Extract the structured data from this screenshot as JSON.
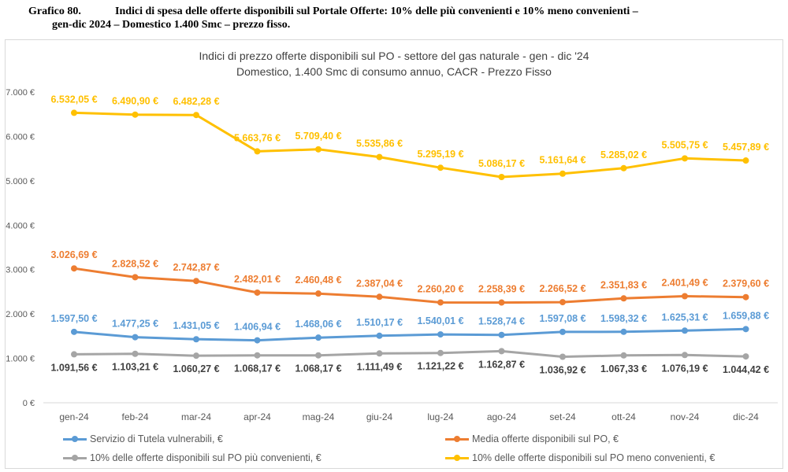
{
  "caption": {
    "number": "Grafico 80.",
    "line1": "Indici di spesa delle offerte disponibili sul Portale Offerte: 10% delle più convenienti e 10% meno convenienti –",
    "line2": "gen-dic 2024 – Domestico 1.400 Smc – prezzo fisso."
  },
  "chart_data": {
    "type": "line",
    "title": "Indici di prezzo offerte disponibili sul PO - settore del gas naturale - gen - dic '24",
    "subtitle": "Domestico, 1.400 Smc di consumo annuo, CACR - Prezzo Fisso",
    "xlabel": "",
    "ylabel": "",
    "ylim": [
      0,
      7000
    ],
    "yticks": [
      0,
      1000,
      2000,
      3000,
      4000,
      5000,
      6000,
      7000
    ],
    "ytick_labels": [
      "0 €",
      "1.000 €",
      "2.000 €",
      "3.000 €",
      "4.000 €",
      "5.000 €",
      "6.000 €",
      "7.000 €"
    ],
    "grid": false,
    "legend_position": "bottom",
    "categories": [
      "gen-24",
      "feb-24",
      "mar-24",
      "apr-24",
      "mag-24",
      "giu-24",
      "lug-24",
      "ago-24",
      "set-24",
      "ott-24",
      "nov-24",
      "dic-24"
    ],
    "series": [
      {
        "name": "Servizio di Tutela vulnerabili, €",
        "color": "#5b9bd5",
        "label_color": "#5b9bd5",
        "label_side": "above",
        "values": [
          1597.5,
          1477.25,
          1431.05,
          1406.94,
          1468.06,
          1510.17,
          1540.01,
          1528.74,
          1597.08,
          1598.32,
          1625.31,
          1659.88
        ],
        "labels": [
          "1.597,50 €",
          "1.477,25 €",
          "1.431,05 €",
          "1.406,94 €",
          "1.468,06 €",
          "1.510,17 €",
          "1.540,01 €",
          "1.528,74 €",
          "1.597,08 €",
          "1.598,32 €",
          "1.625,31 €",
          "1.659,88 €"
        ]
      },
      {
        "name": "Media offerte disponibili sul PO, €",
        "color": "#ed7d31",
        "label_color": "#ed7d31",
        "label_side": "above",
        "values": [
          3026.69,
          2828.52,
          2742.87,
          2482.01,
          2460.48,
          2387.04,
          2260.2,
          2258.39,
          2266.52,
          2351.83,
          2401.49,
          2379.6
        ],
        "labels": [
          "3.026,69 €",
          "2.828,52 €",
          "2.742,87 €",
          "2.482,01 €",
          "2.460,48 €",
          "2.387,04 €",
          "2.260,20 €",
          "2.258,39 €",
          "2.266,52 €",
          "2.351,83 €",
          "2.401,49 €",
          "2.379,60 €"
        ]
      },
      {
        "name": "10% delle offerte disponibili sul PO più convenienti, €",
        "color": "#a5a5a5",
        "label_color": "#3f3f3f",
        "label_side": "below",
        "values": [
          1091.56,
          1103.21,
          1060.27,
          1068.17,
          1068.17,
          1111.49,
          1121.22,
          1162.87,
          1036.92,
          1067.33,
          1076.19,
          1044.42
        ],
        "labels": [
          "1.091,56 €",
          "1.103,21 €",
          "1.060,27 €",
          "1.068,17 €",
          "1.068,17 €",
          "1.111,49 €",
          "1.121,22 €",
          "1.162,87 €",
          "1.036,92 €",
          "1.067,33 €",
          "1.076,19 €",
          "1.044,42 €"
        ]
      },
      {
        "name": "10% delle offerte disponibili sul PO meno convenienti, €",
        "color": "#ffc000",
        "label_color": "#ffc000",
        "label_side": "above",
        "values": [
          6532.05,
          6490.9,
          6482.28,
          5663.76,
          5709.4,
          5535.86,
          5295.19,
          5086.17,
          5161.64,
          5285.02,
          5505.75,
          5457.89
        ],
        "labels": [
          "6.532,05 €",
          "6.490,90 €",
          "6.482,28 €",
          "5.663,76 €",
          "5.709,40 €",
          "5.535,86 €",
          "5.295,19 €",
          "5.086,17 €",
          "5.161,64 €",
          "5.285,02 €",
          "5.505,75 €",
          "5.457,89 €"
        ]
      }
    ]
  }
}
